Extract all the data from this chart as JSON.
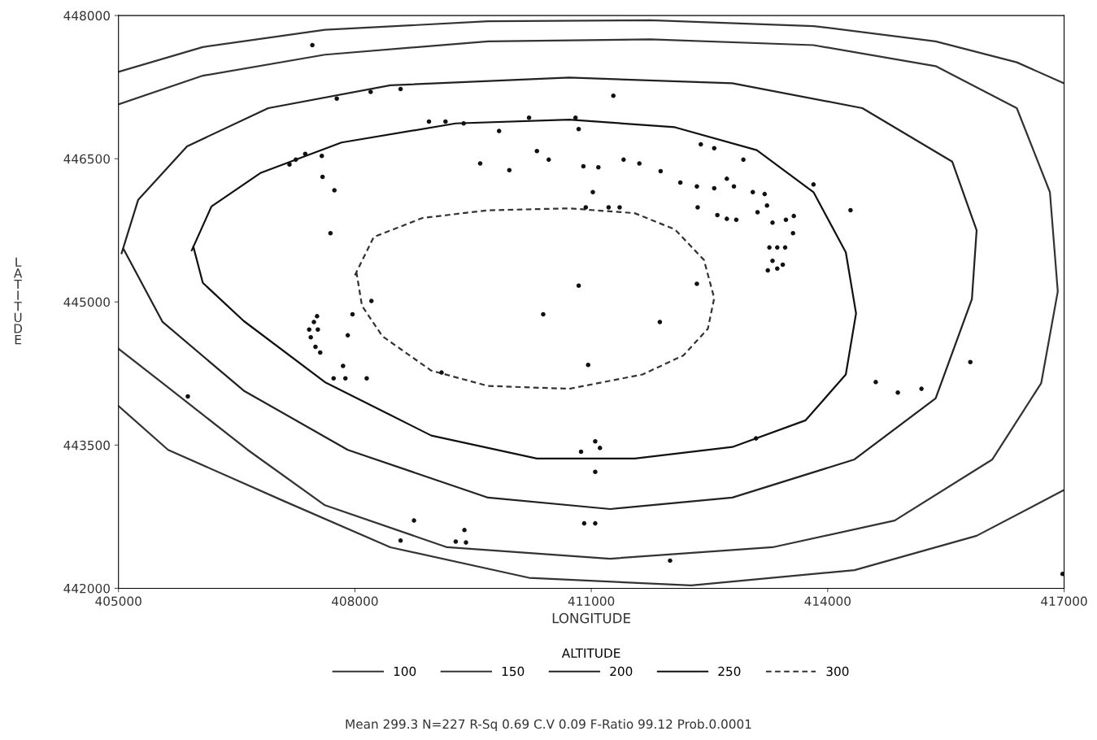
{
  "chart_data": {
    "type": "line",
    "xlabel": "LONGITUDE",
    "ylabel": "LATITUDE",
    "legend_title": "ALTITUDE",
    "xlim": [
      405000,
      417000
    ],
    "xticks": [
      405000,
      408000,
      411000,
      414000,
      417000
    ],
    "ylim": [
      442000,
      448000
    ],
    "yticks": [
      442000,
      443500,
      445000,
      446500,
      448000
    ],
    "grid": false,
    "legend": "bottom",
    "marker": "none",
    "annotations": [
      "Mean 299.3 N=227 R-Sq 0.69 C.V 0.09 F-Ratio 99.12 Prob.0.0001"
    ],
    "series": [
      {
        "name": "100",
        "color": "#333333",
        "line_style": "solid",
        "x": [
          405000,
          406070,
          407620,
          409690,
          411750,
          413820,
          415370,
          416400,
          417000,
          null,
          417000,
          415890,
          414340,
          412270,
          410210,
          408450,
          407110,
          405630,
          405000
        ],
        "values": [
          447410,
          447670,
          447850,
          447940,
          447950,
          447890,
          447730,
          447510,
          447290,
          null,
          443030,
          442550,
          442190,
          442030,
          442110,
          442430,
          442910,
          443450,
          443910
        ]
      },
      {
        "name": "150",
        "color": "#333333",
        "line_style": "solid",
        "x": [
          405000,
          406070,
          407620,
          409690,
          411750,
          413820,
          415370,
          416400,
          416820,
          416920,
          416710,
          416090,
          414850,
          413300,
          411240,
          409170,
          407620,
          406640,
          405560,
          405000
        ],
        "values": [
          447070,
          447370,
          447590,
          447730,
          447750,
          447690,
          447470,
          447030,
          446150,
          445110,
          444150,
          443350,
          442710,
          442430,
          442310,
          442430,
          442870,
          443450,
          444150,
          444510
        ]
      },
      {
        "name": "200",
        "color": "#222222",
        "line_style": "solid",
        "x": [
          405040,
          405250,
          405870,
          406900,
          408450,
          410720,
          412790,
          414440,
          415580,
          415890,
          415830,
          415370,
          414340,
          412790,
          411240,
          409690,
          407910,
          406590,
          405560,
          405060
        ],
        "values": [
          445510,
          446070,
          446630,
          447030,
          447270,
          447350,
          447290,
          447030,
          446470,
          445750,
          445030,
          443990,
          443350,
          442950,
          442830,
          442950,
          443450,
          444070,
          444790,
          445560
        ]
      },
      {
        "name": "250",
        "color": "#111111",
        "line_style": "solid",
        "x": [
          405930,
          406180,
          406800,
          407830,
          409280,
          410720,
          412060,
          413100,
          413820,
          414230,
          414360,
          414230,
          413720,
          412790,
          411550,
          410310,
          408970,
          407620,
          406590,
          406070,
          405950
        ],
        "values": [
          445540,
          446000,
          446350,
          446670,
          446870,
          446910,
          446830,
          446590,
          446150,
          445520,
          444880,
          444240,
          443760,
          443480,
          443360,
          443360,
          443600,
          444160,
          444800,
          445200,
          445580
        ]
      },
      {
        "name": "300",
        "color": "#333333",
        "line_style": "dashed",
        "x": [
          408000,
          408240,
          408860,
          409690,
          410720,
          411550,
          412060,
          412430,
          412560,
          412480,
          412170,
          411650,
          410720,
          409690,
          408970,
          408350,
          408090,
          408020
        ],
        "values": [
          445280,
          445680,
          445880,
          445960,
          445980,
          445930,
          445760,
          445440,
          445040,
          444720,
          444440,
          444240,
          444090,
          444120,
          444280,
          444640,
          444960,
          445310
        ]
      },
      {
        "type": "scatter",
        "color": "#111111",
        "marker": "circle",
        "x": [
          407460,
          407770,
          408200,
          408580,
          408940,
          409150,
          409380,
          409830,
          410210,
          410800,
          410840,
          411280,
          407170,
          407250,
          407370,
          407580,
          407590,
          407740,
          407690,
          409590,
          409960,
          410310,
          410460,
          410900,
          411090,
          411020,
          410930,
          411220,
          411360,
          411410,
          411610,
          411880,
          412130,
          412340,
          412390,
          412560,
          412350,
          412560,
          412600,
          412720,
          412840,
          412720,
          412810,
          412930,
          413050,
          413200,
          413110,
          413300,
          413470,
          413560,
          413260,
          413360,
          413460,
          413300,
          413240,
          413360,
          413430,
          414290,
          413820,
          413230,
          413570,
          407420,
          407440,
          407500,
          407530,
          407520,
          407480,
          407560,
          407910,
          407970,
          408210,
          407850,
          407730,
          407880,
          408150,
          409100,
          410390,
          410840,
          410960,
          411870,
          412340,
          414610,
          414890,
          415190,
          415810,
          413090,
          411050,
          411110,
          410870,
          411050,
          410910,
          411050,
          409390,
          409280,
          409410,
          408750,
          408580,
          405880,
          412000,
          416980
        ],
        "values": [
          447690,
          447130,
          447200,
          447230,
          446890,
          446890,
          446870,
          446790,
          446930,
          446930,
          446810,
          447160,
          446440,
          446490,
          446550,
          446530,
          446310,
          446170,
          445720,
          446450,
          446380,
          446580,
          446490,
          446420,
          446410,
          446150,
          445990,
          445990,
          445990,
          446490,
          446450,
          446370,
          446250,
          446210,
          446650,
          446610,
          445990,
          446190,
          445910,
          445870,
          445860,
          446290,
          446210,
          446490,
          446150,
          446130,
          445940,
          445830,
          445860,
          445720,
          445570,
          445570,
          445570,
          445430,
          445330,
          445350,
          445390,
          445960,
          446230,
          446010,
          445900,
          444710,
          444630,
          444530,
          444710,
          444850,
          444790,
          444470,
          444650,
          444870,
          445010,
          444330,
          444200,
          444200,
          444200,
          444260,
          444870,
          445170,
          444340,
          444790,
          445190,
          444160,
          444050,
          444090,
          444370,
          443570,
          443540,
          443470,
          443430,
          443220,
          442680,
          442680,
          442610,
          442490,
          442480,
          442710,
          442500,
          444010,
          442290,
          442150
        ]
      }
    ]
  }
}
